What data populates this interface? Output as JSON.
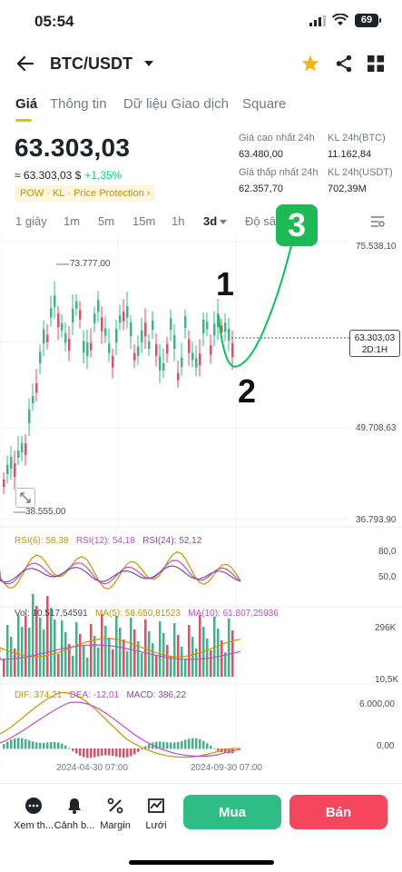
{
  "status_bar": {
    "time": "05:54",
    "battery": "69"
  },
  "header": {
    "pair": "BTC/USDT",
    "icons": [
      "back-arrow-icon",
      "star-icon",
      "share-icon",
      "grid-icon"
    ],
    "star_color": "#f0b90b"
  },
  "tabs": [
    {
      "label": "Giá",
      "active": true
    },
    {
      "label": "Thông tin",
      "active": false
    },
    {
      "label": "Dữ liệu Giao dịch",
      "active": false
    },
    {
      "label": "Square",
      "active": false
    }
  ],
  "price": {
    "last": "63.303,03",
    "approx": "≈ 63.303,03 $",
    "change": "+1,35%",
    "tags": [
      "POW",
      "KL",
      "Price Protection"
    ]
  },
  "stats": {
    "high_label": "Giá cao nhất 24h",
    "high_value": "63.480,00",
    "low_label": "Giá thấp nhất 24h",
    "low_value": "62.357,70",
    "vol_btc_label": "KL 24h(BTC)",
    "vol_btc_value": "11.162,84",
    "vol_usdt_label": "KL 24h(USDT)",
    "vol_usdt_value": "702,39M"
  },
  "intervals": [
    {
      "label": "1 giây",
      "active": false
    },
    {
      "label": "1m",
      "active": false
    },
    {
      "label": "5m",
      "active": false
    },
    {
      "label": "15m",
      "active": false
    },
    {
      "label": "1h",
      "active": false
    },
    {
      "label": "3d",
      "active": true
    },
    {
      "label": "Độ sâu",
      "active": false
    }
  ],
  "chart": {
    "y_labels": [
      "75.538,10",
      "49.708,63",
      "36.793,90"
    ],
    "high_mark": "73.777,00",
    "low_mark": "38.555,00",
    "current_price": "63.303,03",
    "current_period": "2D:1H",
    "annotations": [
      "1",
      "2",
      "3"
    ],
    "rsi": {
      "rsi6": "RSI(6): 58,38",
      "rsi12": "RSI(12): 54,18",
      "rsi24": "RSI(24): 52,12",
      "levels": [
        "80,0",
        "50,0"
      ]
    },
    "volume": {
      "vol": "Vol: 10.517,54591",
      "ma5": "MA(5): 58.650,81523",
      "ma10": "MA(10): 61.807,25936",
      "levels": [
        "296K",
        "10,5K"
      ]
    },
    "macd": {
      "dif": "DIF: 374,21",
      "dea": "DEA: -12,01",
      "macd": "MACD: 386,22",
      "levels": [
        "6.000,00",
        "0,00"
      ]
    },
    "dates": [
      "2024-04-30 07:00",
      "2024-09-30 07:00"
    ],
    "colors": {
      "up": "#2ebd85",
      "down": "#f6465d",
      "annotation": "#00c853"
    }
  },
  "bottom_bar": {
    "items": [
      {
        "label": "Xem th...",
        "icon": "more-icon"
      },
      {
        "label": "Cảnh b...",
        "icon": "bell-icon"
      },
      {
        "label": "Margin",
        "icon": "margin-icon"
      },
      {
        "label": "Lưới",
        "icon": "grid-bot-icon"
      }
    ],
    "buy": "Mua",
    "sell": "Bán"
  }
}
